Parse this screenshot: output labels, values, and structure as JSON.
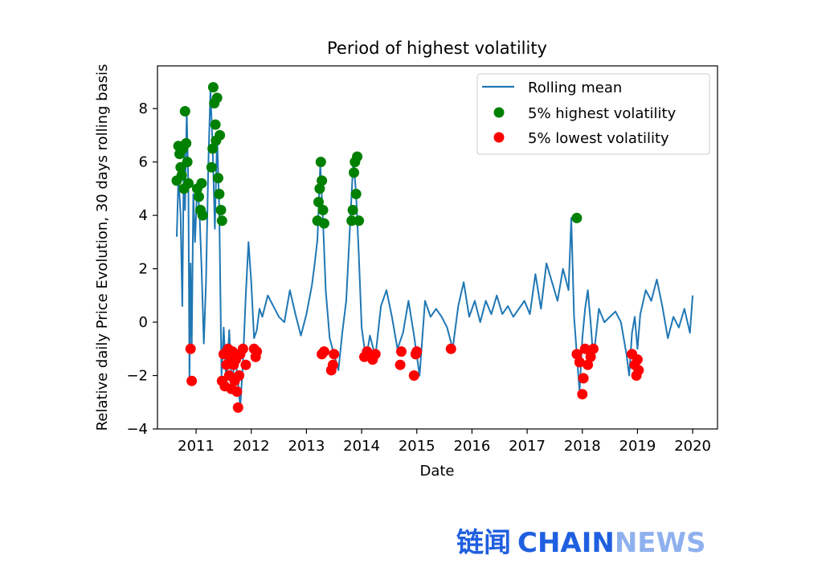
{
  "chart_data": {
    "type": "line",
    "title": "Period of highest volatility",
    "xlabel": "Date",
    "ylabel": "Relative daily Price Evolution, 30 days rolling basis",
    "xlim": [
      2010.3,
      2020.45
    ],
    "ylim": [
      -4,
      9.6
    ],
    "x_ticks": [
      2011,
      2012,
      2013,
      2014,
      2015,
      2016,
      2017,
      2018,
      2019,
      2020
    ],
    "x_tick_labels": [
      "2011",
      "2012",
      "2013",
      "2014",
      "2015",
      "2016",
      "2017",
      "2018",
      "2019",
      "2020"
    ],
    "y_ticks": [
      -4,
      -2,
      0,
      2,
      4,
      6,
      8
    ],
    "y_tick_labels": [
      "−4",
      "−2",
      "0",
      "2",
      "4",
      "6",
      "8"
    ],
    "grid": false,
    "legend_position": "top-right",
    "colors": {
      "line": "#1f77b4",
      "high": "#008000",
      "low": "#ff0000"
    },
    "series": [
      {
        "name": "Rolling mean",
        "kind": "line",
        "x": [
          2010.65,
          2010.68,
          2010.72,
          2010.75,
          2010.78,
          2010.8,
          2010.83,
          2010.86,
          2010.88,
          2010.9,
          2010.92,
          2010.95,
          2010.98,
          2011.02,
          2011.06,
          2011.1,
          2011.14,
          2011.18,
          2011.22,
          2011.26,
          2011.3,
          2011.34,
          2011.38,
          2011.42,
          2011.46,
          2011.5,
          2011.55,
          2011.6,
          2011.65,
          2011.7,
          2011.75,
          2011.8,
          2011.85,
          2011.9,
          2011.95,
          2012.0,
          2012.05,
          2012.1,
          2012.15,
          2012.2,
          2012.3,
          2012.4,
          2012.5,
          2012.6,
          2012.7,
          2012.8,
          2012.9,
          2013.0,
          2013.1,
          2013.15,
          2013.2,
          2013.25,
          2013.3,
          2013.35,
          2013.42,
          2013.5,
          2013.58,
          2013.65,
          2013.72,
          2013.8,
          2013.85,
          2013.9,
          2013.95,
          2014.0,
          2014.08,
          2014.15,
          2014.25,
          2014.35,
          2014.45,
          2014.55,
          2014.65,
          2014.75,
          2014.85,
          2014.95,
          2015.05,
          2015.15,
          2015.25,
          2015.35,
          2015.45,
          2015.55,
          2015.65,
          2015.75,
          2015.85,
          2015.95,
          2016.05,
          2016.15,
          2016.25,
          2016.35,
          2016.45,
          2016.55,
          2016.65,
          2016.75,
          2016.85,
          2016.95,
          2017.05,
          2017.15,
          2017.25,
          2017.35,
          2017.45,
          2017.55,
          2017.65,
          2017.75,
          2017.8,
          2017.85,
          2017.9,
          2017.95,
          2018.0,
          2018.05,
          2018.1,
          2018.15,
          2018.2,
          2018.3,
          2018.4,
          2018.5,
          2018.6,
          2018.7,
          2018.8,
          2018.85,
          2018.9,
          2018.95,
          2019.0,
          2019.05,
          2019.15,
          2019.25,
          2019.35,
          2019.45,
          2019.55,
          2019.65,
          2019.75,
          2019.85,
          2019.95,
          2020.0
        ],
        "y": [
          3.2,
          5.5,
          4.0,
          0.6,
          6.8,
          4.2,
          7.9,
          5.0,
          -2.2,
          2.2,
          -1.0,
          4.8,
          3.0,
          5.1,
          4.2,
          2.0,
          -0.8,
          1.5,
          5.8,
          8.7,
          6.5,
          3.5,
          7.0,
          4.2,
          -2.0,
          -0.2,
          -2.4,
          -0.3,
          -2.6,
          -1.2,
          -2.0,
          -3.2,
          -1.5,
          1.0,
          3.0,
          1.5,
          -0.6,
          -0.3,
          0.5,
          0.2,
          1.0,
          0.6,
          0.2,
          0.0,
          1.2,
          0.3,
          -0.5,
          0.3,
          1.4,
          2.2,
          3.1,
          5.9,
          3.8,
          1.2,
          -0.6,
          -1.2,
          -1.8,
          -0.4,
          0.8,
          4.0,
          6.1,
          4.8,
          2.5,
          -0.2,
          -1.4,
          -0.5,
          -1.3,
          0.6,
          1.2,
          0.2,
          -1.0,
          -0.4,
          0.8,
          -0.5,
          -2.0,
          0.8,
          0.2,
          0.5,
          0.2,
          -0.2,
          -1.0,
          0.6,
          1.5,
          0.2,
          0.8,
          0.0,
          0.8,
          0.3,
          1.0,
          0.3,
          0.6,
          0.2,
          0.5,
          0.8,
          0.3,
          1.8,
          0.5,
          2.2,
          1.5,
          0.8,
          2.0,
          1.2,
          3.9,
          0.2,
          -1.2,
          -2.6,
          -0.6,
          0.5,
          1.2,
          0.0,
          -1.4,
          0.5,
          0.0,
          0.2,
          0.4,
          0.0,
          -1.2,
          -2.0,
          -0.4,
          0.2,
          -1.0,
          0.3,
          1.2,
          0.8,
          1.6,
          0.6,
          -0.6,
          0.2,
          -0.2,
          0.5,
          -0.4,
          1.0
        ]
      },
      {
        "name": "5% highest volatility",
        "kind": "scatter",
        "x": [
          2010.65,
          2010.68,
          2010.7,
          2010.72,
          2010.74,
          2010.76,
          2010.78,
          2010.8,
          2010.82,
          2010.84,
          2010.86,
          2011.02,
          2011.05,
          2011.08,
          2011.1,
          2011.12,
          2011.28,
          2011.3,
          2011.31,
          2011.33,
          2011.35,
          2011.36,
          2011.38,
          2011.4,
          2011.42,
          2011.43,
          2011.45,
          2011.47,
          2013.2,
          2013.22,
          2013.24,
          2013.26,
          2013.28,
          2013.3,
          2013.32,
          2013.82,
          2013.84,
          2013.86,
          2013.88,
          2013.9,
          2013.92,
          2013.95,
          2017.9
        ],
        "y": [
          5.3,
          6.6,
          6.3,
          5.8,
          5.5,
          6.5,
          5.0,
          7.9,
          6.7,
          6.0,
          5.2,
          5.0,
          4.7,
          4.2,
          5.2,
          4.0,
          5.8,
          6.5,
          8.8,
          8.2,
          7.4,
          6.8,
          8.4,
          5.4,
          4.8,
          7.0,
          4.2,
          3.8,
          3.8,
          4.5,
          5.0,
          6.0,
          5.3,
          4.2,
          3.7,
          3.8,
          4.2,
          5.6,
          6.0,
          4.8,
          6.2,
          3.8,
          3.9
        ]
      },
      {
        "name": "5% lowest volatility",
        "kind": "scatter",
        "x": [
          2010.9,
          2010.92,
          2011.47,
          2011.5,
          2011.52,
          2011.55,
          2011.58,
          2011.6,
          2011.62,
          2011.64,
          2011.66,
          2011.68,
          2011.7,
          2011.72,
          2011.74,
          2011.76,
          2011.78,
          2011.8,
          2011.85,
          2011.9,
          2012.05,
          2012.08,
          2012.1,
          2013.28,
          2013.32,
          2013.45,
          2013.48,
          2013.5,
          2014.05,
          2014.1,
          2014.2,
          2014.25,
          2014.7,
          2014.72,
          2014.95,
          2014.98,
          2015.0,
          2015.62,
          2017.9,
          2017.95,
          2018.0,
          2018.02,
          2018.05,
          2018.1,
          2018.15,
          2018.2,
          2018.9,
          2018.95,
          2018.98,
          2019.0,
          2019.02
        ],
        "y": [
          -1.0,
          -2.2,
          -2.2,
          -1.2,
          -2.4,
          -1.6,
          -1.0,
          -2.0,
          -1.3,
          -2.5,
          -1.1,
          -1.6,
          -2.2,
          -1.4,
          -2.6,
          -3.2,
          -2.0,
          -1.2,
          -1.0,
          -1.6,
          -1.0,
          -1.3,
          -1.1,
          -1.2,
          -1.1,
          -1.8,
          -1.6,
          -1.2,
          -1.3,
          -1.1,
          -1.4,
          -1.2,
          -1.6,
          -1.1,
          -2.0,
          -1.2,
          -1.1,
          -1.0,
          -1.2,
          -1.5,
          -2.7,
          -2.1,
          -1.0,
          -1.6,
          -1.3,
          -1.0,
          -1.2,
          -1.6,
          -2.0,
          -1.4,
          -1.8
        ]
      }
    ]
  },
  "watermark": {
    "cn_text": "链闻",
    "chain_text": "CHAIN",
    "news_text": "NEWS"
  }
}
